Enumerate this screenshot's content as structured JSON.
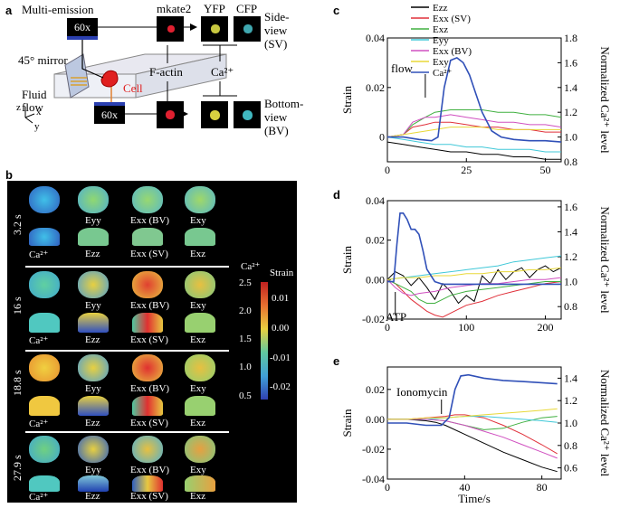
{
  "panel_labels": {
    "a": "a",
    "b": "b",
    "c": "c",
    "d": "d",
    "e": "e"
  },
  "panel_a": {
    "multi_emission": "Multi-emission",
    "objective_top": "60x",
    "objective_bottom": "60x",
    "mirror_label": "45° mirror",
    "fluid_flow": "Fluid flow",
    "cell": "Cell",
    "channels": [
      "mkate2",
      "YFP",
      "CFP"
    ],
    "side_view": "Side-view (SV)",
    "bottom_view": "Bottom-view (BV)",
    "f_actin": "F-actin",
    "ca": "Ca²⁺",
    "axes": {
      "z": "z",
      "x": "x",
      "y": "y"
    }
  },
  "panel_b": {
    "times": [
      "3.2 s",
      "16 s",
      "18.8 s",
      "27.9 s"
    ],
    "row_top_labels": [
      "Eyy",
      "Exx (BV)",
      "Exy"
    ],
    "row_bottom_labels": [
      "Ca²⁺",
      "Ezz",
      "Exx (SV)",
      "Exz"
    ],
    "colorbar": {
      "ca_title": "Ca²⁺",
      "strain_title": "Strain",
      "ca_ticks": [
        "2.5",
        "2.0",
        "1.5",
        "1.0",
        "0.5"
      ],
      "strain_ticks": [
        "0.01",
        "0.00",
        "-0.01",
        "-0.02"
      ]
    }
  },
  "chart_data": [
    {
      "id": "c",
      "type": "line",
      "xlabel": "",
      "ylabel_left": "Strain",
      "ylabel_right": "Normalized Ca²⁺ level",
      "xlim": [
        0,
        55
      ],
      "ylim_left": [
        -0.01,
        0.04
      ],
      "ylim_right": [
        0.8,
        1.8
      ],
      "xticks": [
        0,
        25,
        50
      ],
      "yticks_left": [
        "0.04",
        "0.02",
        "0"
      ],
      "yticks_right": [
        "1.8",
        "1.6",
        "1.4",
        "1.2",
        "1.0",
        "0.8"
      ],
      "annotation": "flow",
      "legend": [
        "Ezz",
        "Exx (SV)",
        "Exz",
        "Eyy",
        "Exx (BV)",
        "Exy",
        "Ca²⁺"
      ],
      "series": [
        {
          "name": "Ezz",
          "color": "#000000",
          "x": [
            0,
            5,
            10,
            15,
            20,
            25,
            30,
            35,
            40,
            45,
            50,
            55
          ],
          "y": [
            -0.002,
            -0.003,
            -0.004,
            -0.005,
            -0.006,
            -0.006,
            -0.007,
            -0.007,
            -0.008,
            -0.008,
            -0.009,
            -0.009
          ]
        },
        {
          "name": "Exx (SV)",
          "color": "#e0303a",
          "x": [
            0,
            5,
            8,
            12,
            15,
            20,
            25,
            30,
            35,
            40,
            45,
            50,
            55
          ],
          "y": [
            0,
            0.001,
            0.004,
            0.005,
            0.006,
            0.006,
            0.005,
            0.004,
            0.004,
            0.003,
            0.003,
            0.002,
            0.002
          ]
        },
        {
          "name": "Exz",
          "color": "#40b040",
          "x": [
            0,
            5,
            8,
            12,
            15,
            20,
            25,
            30,
            35,
            40,
            45,
            50,
            55
          ],
          "y": [
            0,
            0.001,
            0.005,
            0.008,
            0.01,
            0.011,
            0.011,
            0.011,
            0.01,
            0.01,
            0.009,
            0.009,
            0.008
          ]
        },
        {
          "name": "Eyy",
          "color": "#40c8d8",
          "x": [
            0,
            5,
            10,
            15,
            20,
            25,
            30,
            35,
            40,
            45,
            50,
            55
          ],
          "y": [
            0,
            -0.001,
            -0.002,
            -0.003,
            -0.003,
            -0.004,
            -0.004,
            -0.005,
            -0.005,
            -0.005,
            -0.006,
            -0.006
          ]
        },
        {
          "name": "Exx (BV)",
          "color": "#d050c0",
          "x": [
            0,
            5,
            8,
            12,
            15,
            20,
            25,
            30,
            35,
            40,
            45,
            50,
            55
          ],
          "y": [
            0,
            0.001,
            0.006,
            0.008,
            0.008,
            0.009,
            0.008,
            0.007,
            0.006,
            0.006,
            0.005,
            0.005,
            0.004
          ]
        },
        {
          "name": "Exy",
          "color": "#e8d838",
          "x": [
            0,
            5,
            10,
            15,
            20,
            25,
            30,
            35,
            40,
            45,
            50,
            55
          ],
          "y": [
            0,
            0.001,
            0.002,
            0.003,
            0.004,
            0.004,
            0.004,
            0.003,
            0.003,
            0.003,
            0.003,
            0.003
          ]
        },
        {
          "name": "Ca²⁺",
          "color": "#3050b8",
          "axis": "right",
          "x": [
            0,
            5,
            10,
            14,
            16,
            18,
            20,
            22,
            24,
            26,
            28,
            30,
            33,
            36,
            40,
            45,
            50,
            55
          ],
          "y": [
            1.0,
            1.0,
            0.98,
            0.97,
            1.0,
            1.4,
            1.62,
            1.64,
            1.6,
            1.5,
            1.35,
            1.2,
            1.05,
            1.0,
            0.98,
            0.97,
            0.97,
            0.96
          ]
        }
      ]
    },
    {
      "id": "d",
      "type": "line",
      "xlabel": "",
      "ylabel_left": "Strain",
      "ylabel_right": "Normalized Ca²⁺ level",
      "xlim": [
        0,
        220
      ],
      "ylim_left": [
        -0.02,
        0.04
      ],
      "ylim_right": [
        0.7,
        1.65
      ],
      "xticks": [
        0,
        100,
        200
      ],
      "yticks_left": [
        "0.04",
        "0.02",
        "0.00",
        "-0.02"
      ],
      "yticks_right": [
        "1.6",
        "1.4",
        "1.2",
        "1.0",
        "0.8"
      ],
      "annotation": "ATP",
      "series": [
        {
          "name": "Ezz",
          "color": "#000000",
          "x": [
            0,
            10,
            20,
            30,
            40,
            50,
            60,
            70,
            80,
            90,
            100,
            110,
            120,
            130,
            140,
            150,
            160,
            170,
            180,
            190,
            200,
            210,
            220
          ],
          "y": [
            0,
            0.004,
            0.002,
            -0.003,
            0.001,
            -0.004,
            -0.01,
            -0.002,
            -0.006,
            -0.012,
            -0.008,
            -0.011,
            0.002,
            -0.002,
            0.005,
            0,
            0.004,
            0.006,
            0.001,
            0.005,
            0.007,
            0.004,
            0.006
          ]
        },
        {
          "name": "Exx (SV)",
          "color": "#e0303a",
          "x": [
            0,
            10,
            20,
            30,
            40,
            50,
            60,
            70,
            80,
            90,
            100,
            120,
            140,
            160,
            180,
            200,
            220
          ],
          "y": [
            0,
            -0.002,
            -0.006,
            -0.01,
            -0.013,
            -0.016,
            -0.018,
            -0.019,
            -0.017,
            -0.015,
            -0.013,
            -0.011,
            -0.008,
            -0.006,
            -0.004,
            -0.002,
            -0.001
          ]
        },
        {
          "name": "Exz",
          "color": "#40b040",
          "x": [
            0,
            10,
            20,
            30,
            40,
            50,
            60,
            70,
            80,
            100,
            120,
            140,
            160,
            180,
            200,
            220
          ],
          "y": [
            0,
            -0.002,
            -0.004,
            -0.006,
            -0.01,
            -0.012,
            -0.012,
            -0.01,
            -0.008,
            -0.006,
            -0.005,
            -0.004,
            -0.003,
            -0.002,
            -0.001,
            -0.001
          ]
        },
        {
          "name": "Eyy",
          "color": "#40c8d8",
          "x": [
            0,
            20,
            40,
            60,
            80,
            100,
            120,
            140,
            160,
            180,
            200,
            220
          ],
          "y": [
            0,
            0.001,
            0.002,
            0.003,
            0.004,
            0.005,
            0.006,
            0.007,
            0.009,
            0.01,
            0.011,
            0.012
          ]
        },
        {
          "name": "Exx (BV)",
          "color": "#d050c0",
          "x": [
            0,
            10,
            20,
            30,
            40,
            60,
            80,
            100,
            120,
            140,
            160,
            180,
            200,
            220
          ],
          "y": [
            0,
            -0.004,
            -0.007,
            -0.008,
            -0.007,
            -0.006,
            -0.004,
            -0.003,
            -0.002,
            -0.002,
            -0.001,
            0,
            0,
            0.001
          ]
        },
        {
          "name": "Exy",
          "color": "#e8d838",
          "x": [
            0,
            20,
            40,
            60,
            80,
            100,
            120,
            140,
            160,
            180,
            200,
            220
          ],
          "y": [
            0,
            0.001,
            0.001,
            0.002,
            0.002,
            0.003,
            0.003,
            0.004,
            0.004,
            0.005,
            0.005,
            0.006
          ]
        },
        {
          "name": "Ca²⁺",
          "color": "#3050b8",
          "axis": "right",
          "x": [
            0,
            8,
            12,
            16,
            20,
            25,
            30,
            35,
            40,
            45,
            50,
            60,
            70,
            80,
            100,
            150,
            220
          ],
          "y": [
            1.0,
            1.0,
            1.3,
            1.55,
            1.55,
            1.5,
            1.42,
            1.42,
            1.38,
            1.25,
            1.1,
            1.0,
            0.98,
            0.98,
            0.98,
            0.98,
            0.98
          ]
        }
      ]
    },
    {
      "id": "e",
      "type": "line",
      "xlabel": "Time/s",
      "ylabel_left": "Strain",
      "ylabel_right": "Normalized Ca²⁺ level",
      "xlim": [
        0,
        90
      ],
      "ylim_left": [
        -0.04,
        0.035
      ],
      "ylim_right": [
        0.5,
        1.5
      ],
      "xticks": [
        0,
        40,
        80
      ],
      "yticks_left": [
        "0.02",
        "0.00",
        "-0.02",
        "-0.04"
      ],
      "yticks_right": [
        "1.4",
        "1.2",
        "1.0",
        "0.8",
        "0.6"
      ],
      "annotation": "Ionomycin",
      "series": [
        {
          "name": "Ezz",
          "color": "#000000",
          "x": [
            0,
            10,
            20,
            25,
            30,
            40,
            50,
            60,
            70,
            80,
            88
          ],
          "y": [
            0,
            0,
            -0.001,
            -0.002,
            -0.004,
            -0.01,
            -0.016,
            -0.022,
            -0.027,
            -0.032,
            -0.035
          ]
        },
        {
          "name": "Exx (SV)",
          "color": "#e0303a",
          "x": [
            0,
            10,
            20,
            30,
            35,
            40,
            50,
            60,
            70,
            80,
            88
          ],
          "y": [
            0,
            0,
            0.001,
            0.002,
            0.003,
            0.003,
            0.001,
            -0.004,
            -0.01,
            -0.017,
            -0.023
          ]
        },
        {
          "name": "Exz",
          "color": "#40b040",
          "x": [
            0,
            10,
            20,
            30,
            40,
            50,
            60,
            70,
            80,
            88
          ],
          "y": [
            0,
            0,
            0,
            -0.001,
            -0.004,
            -0.007,
            -0.006,
            -0.002,
            0.001,
            0.002
          ]
        },
        {
          "name": "Eyy",
          "color": "#40c8d8",
          "x": [
            0,
            10,
            20,
            30,
            40,
            50,
            60,
            70,
            80,
            88
          ],
          "y": [
            0,
            0,
            0,
            0.001,
            0.002,
            0.002,
            0.001,
            0,
            -0.001,
            -0.002
          ]
        },
        {
          "name": "Exx (BV)",
          "color": "#d050c0",
          "x": [
            0,
            10,
            20,
            30,
            40,
            50,
            60,
            70,
            80,
            88
          ],
          "y": [
            0,
            0,
            0,
            -0.001,
            -0.004,
            -0.008,
            -0.012,
            -0.017,
            -0.022,
            -0.026
          ]
        },
        {
          "name": "Exy",
          "color": "#e8d838",
          "x": [
            0,
            10,
            20,
            30,
            40,
            50,
            60,
            70,
            80,
            88
          ],
          "y": [
            0,
            0,
            0.001,
            0.001,
            0.002,
            0.003,
            0.004,
            0.005,
            0.006,
            0.007
          ]
        },
        {
          "name": "Ca²⁺",
          "color": "#3050b8",
          "axis": "right",
          "x": [
            0,
            10,
            20,
            28,
            32,
            35,
            38,
            42,
            50,
            60,
            70,
            80,
            88
          ],
          "y": [
            1.0,
            1.0,
            0.98,
            0.98,
            1.05,
            1.3,
            1.42,
            1.43,
            1.4,
            1.38,
            1.37,
            1.36,
            1.35
          ]
        }
      ]
    }
  ]
}
